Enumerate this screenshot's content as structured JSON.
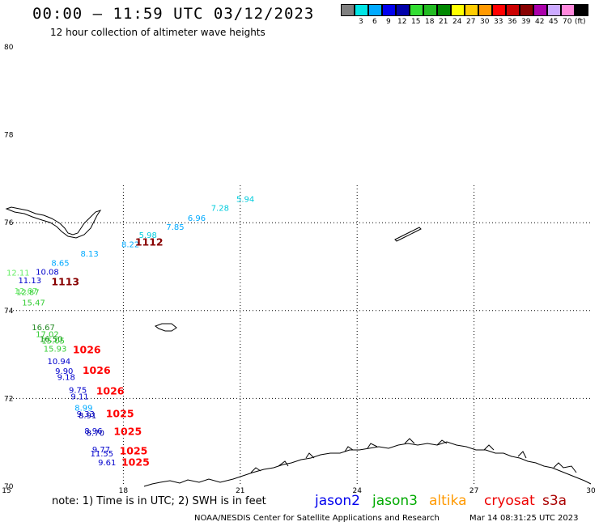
{
  "header": {
    "title": "00:00 – 11:59 UTC 03/12/2023",
    "subtitle": "12 hour collection of altimeter wave heights"
  },
  "colorbar": {
    "swatches": [
      {
        "color": "#808080",
        "label": ""
      },
      {
        "color": "#00e5e5",
        "label": "3"
      },
      {
        "color": "#00aaff",
        "label": "6"
      },
      {
        "color": "#0000ee",
        "label": "9"
      },
      {
        "color": "#0000aa",
        "label": "12"
      },
      {
        "color": "#33dd33",
        "label": "15"
      },
      {
        "color": "#22bb22",
        "label": "18"
      },
      {
        "color": "#008800",
        "label": "21"
      },
      {
        "color": "#ffff00",
        "label": "24"
      },
      {
        "color": "#ffcc00",
        "label": "27"
      },
      {
        "color": "#ff9900",
        "label": "30"
      },
      {
        "color": "#ff0000",
        "label": "33"
      },
      {
        "color": "#cc0000",
        "label": "36"
      },
      {
        "color": "#880000",
        "label": "39"
      },
      {
        "color": "#aa00aa",
        "label": "42"
      },
      {
        "color": "#ccaaff",
        "label": "45"
      },
      {
        "color": "#ff88dd",
        "label": "70"
      },
      {
        "color": "#000000",
        "label": "(ft)"
      }
    ]
  },
  "map": {
    "lat_labels": [
      "80",
      "78",
      "76",
      "74",
      "72",
      "70"
    ],
    "lon_labels": [
      "15",
      "18",
      "21",
      "24",
      "27",
      "30"
    ]
  },
  "observations": [
    {
      "v": "5.94",
      "lon": 20.9,
      "lat": 76.47,
      "c": "#00ccdd"
    },
    {
      "v": "7.28",
      "lon": 20.25,
      "lat": 76.27,
      "c": "#00ccdd"
    },
    {
      "v": "6.96",
      "lon": 19.65,
      "lat": 76.04,
      "c": "#00aaff"
    },
    {
      "v": "7.85",
      "lon": 19.1,
      "lat": 75.84,
      "c": "#00aaff"
    },
    {
      "v": "5.98",
      "lon": 18.4,
      "lat": 75.65,
      "c": "#00ccdd"
    },
    {
      "v": "8.22",
      "lon": 17.95,
      "lat": 75.44,
      "c": "#00aaff"
    },
    {
      "v": "8.13",
      "lon": 16.9,
      "lat": 75.23,
      "c": "#00aaff"
    },
    {
      "v": "8.65",
      "lon": 16.15,
      "lat": 75.02,
      "c": "#00aaff"
    },
    {
      "v": "10.08",
      "lon": 15.75,
      "lat": 74.82,
      "c": "#0000cc"
    },
    {
      "v": "12.11",
      "lon": 15.0,
      "lat": 74.8,
      "c": "#66ee66"
    },
    {
      "v": "11.13",
      "lon": 15.3,
      "lat": 74.62,
      "c": "#0000cc"
    },
    {
      "v": "12.67",
      "lon": 15.2,
      "lat": 74.38,
      "c": "#66ee66"
    },
    {
      "v": "12.87",
      "lon": 15.25,
      "lat": 74.36,
      "c": "#33cc33"
    },
    {
      "v": "15.47",
      "lon": 15.4,
      "lat": 74.12,
      "c": "#33cc33"
    },
    {
      "v": "16.67",
      "lon": 15.65,
      "lat": 73.55,
      "c": "#228822"
    },
    {
      "v": "17.02",
      "lon": 15.75,
      "lat": 73.4,
      "c": "#33cc33"
    },
    {
      "v": "16.50",
      "lon": 15.85,
      "lat": 73.29,
      "c": "#008800"
    },
    {
      "v": "15.05",
      "lon": 15.9,
      "lat": 73.25,
      "c": "#33cc33"
    },
    {
      "v": "15.93",
      "lon": 15.95,
      "lat": 73.07,
      "c": "#33cc33"
    },
    {
      "v": "10.94",
      "lon": 16.05,
      "lat": 72.78,
      "c": "#0000cc"
    },
    {
      "v": "9.90",
      "lon": 16.25,
      "lat": 72.56,
      "c": "#0000cc"
    },
    {
      "v": "9.18",
      "lon": 16.3,
      "lat": 72.42,
      "c": "#0000cc"
    },
    {
      "v": "9.75",
      "lon": 16.6,
      "lat": 72.13,
      "c": "#0000cc"
    },
    {
      "v": "9.11",
      "lon": 16.65,
      "lat": 71.98,
      "c": "#0000cc"
    },
    {
      "v": "8.99",
      "lon": 16.75,
      "lat": 71.72,
      "c": "#00aaff"
    },
    {
      "v": "9.33",
      "lon": 16.8,
      "lat": 71.58,
      "c": "#0000cc"
    },
    {
      "v": "8.91",
      "lon": 16.85,
      "lat": 71.55,
      "c": "#0000aa"
    },
    {
      "v": "8.96",
      "lon": 17.0,
      "lat": 71.2,
      "c": "#0000cc"
    },
    {
      "v": "8.70",
      "lon": 17.05,
      "lat": 71.15,
      "c": "#0000aa"
    },
    {
      "v": "9.77",
      "lon": 17.2,
      "lat": 70.77,
      "c": "#0000cc"
    },
    {
      "v": "11.55",
      "lon": 17.15,
      "lat": 70.68,
      "c": "#0000cc"
    },
    {
      "v": "9.61",
      "lon": 17.35,
      "lat": 70.48,
      "c": "#0000cc"
    }
  ],
  "time_tags": [
    {
      "t": "1112",
      "lon": 18.3,
      "lat": 75.48,
      "c": "#880000"
    },
    {
      "t": "1113",
      "lon": 16.15,
      "lat": 74.58,
      "c": "#880000"
    },
    {
      "t": "1026",
      "lon": 16.7,
      "lat": 73.03,
      "c": "#ff0000"
    },
    {
      "t": "1026",
      "lon": 16.95,
      "lat": 72.56,
      "c": "#ff0000"
    },
    {
      "t": "1026",
      "lon": 17.3,
      "lat": 72.09,
      "c": "#ff0000"
    },
    {
      "t": "1025",
      "lon": 17.55,
      "lat": 71.57,
      "c": "#ff0000"
    },
    {
      "t": "1025",
      "lon": 17.75,
      "lat": 71.17,
      "c": "#ff0000"
    },
    {
      "t": "1025",
      "lon": 17.9,
      "lat": 70.73,
      "c": "#ff0000"
    },
    {
      "t": "1025",
      "lon": 17.95,
      "lat": 70.47,
      "c": "#ff0000"
    }
  ],
  "footer": {
    "note": "note: 1) Time is in UTC; 2) SWH is in feet",
    "satellites": [
      {
        "name": "jason2",
        "color": "#0000ee"
      },
      {
        "name": "jason3",
        "color": "#00aa00"
      },
      {
        "name": "altika",
        "color": "#ff9900"
      },
      {
        "name": "cryosat",
        "color": "#ee0000"
      },
      {
        "name": "s3a",
        "color": "#aa0000"
      }
    ],
    "credit": "NOAA/NESDIS Center for Satellite Applications and Research",
    "timestamp": "Mar 14 08:31:25 UTC 2023"
  }
}
